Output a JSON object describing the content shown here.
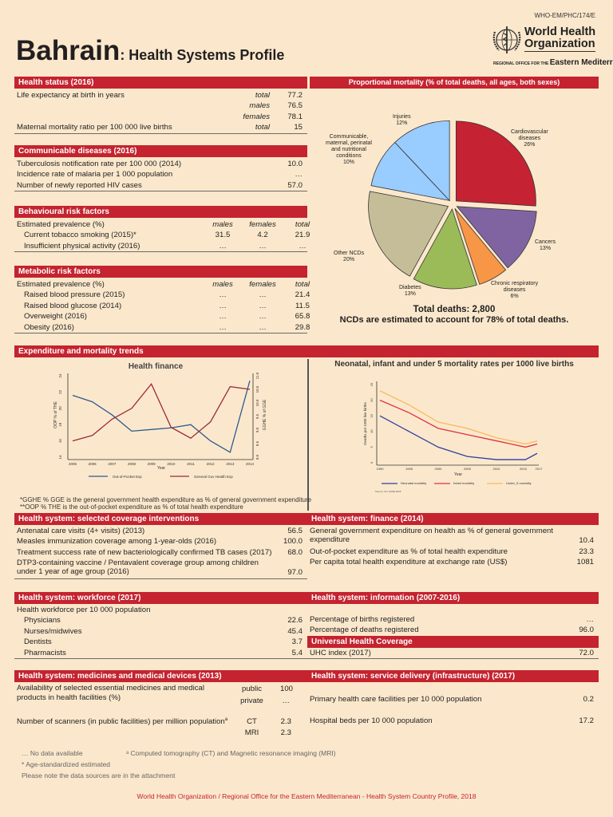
{
  "header": {
    "doc_id": "WHO-EM/PHC/174/E",
    "country": "Bahrain",
    "subtitle": ": Health Systems Profile",
    "logo": {
      "line1": "World Health",
      "line2": "Organization",
      "regional_prefix": "REGIONAL OFFICE FOR THE",
      "region": "Eastern Mediterranean"
    }
  },
  "health_status": {
    "title": "Health status (2016)",
    "rows": [
      {
        "label": "Life expectancy at birth in years",
        "sub": "total",
        "value": "77.2"
      },
      {
        "label": "",
        "sub": "males",
        "value": "76.5"
      },
      {
        "label": "",
        "sub": "females",
        "value": "78.1"
      },
      {
        "label": "Maternal mortality ratio per 100 000 live births",
        "sub": "total",
        "value": "15"
      }
    ]
  },
  "communicable": {
    "title": "Communicable diseases (2016)",
    "rows": [
      {
        "label": "Tuberculosis notification rate per 100 000 (2014)",
        "value": "10.0"
      },
      {
        "label": "Incidence rate of malaria per 1 000 population",
        "value": "…"
      },
      {
        "label": "Number of newly reported HIV cases",
        "value": "57.0"
      }
    ]
  },
  "behavioural": {
    "title": "Behavioural risk factors",
    "header": {
      "label": "Estimated prevalence (%)",
      "cols": [
        "males",
        "females",
        "total"
      ]
    },
    "rows": [
      {
        "label": "Current tobacco smoking (2015)*",
        "cols": [
          "31.5",
          "4.2",
          "21.9"
        ]
      },
      {
        "label": "Insufficient physical activity (2016)",
        "cols": [
          "…",
          "…",
          "…"
        ]
      }
    ]
  },
  "metabolic": {
    "title": "Metabolic risk factors",
    "header": {
      "label": "Estimated prevalence (%)",
      "cols": [
        "males",
        "females",
        "total"
      ]
    },
    "rows": [
      {
        "label": "Raised blood pressure (2015)",
        "cols": [
          "…",
          "…",
          "21.4"
        ]
      },
      {
        "label": "Raised blood glucose (2014)",
        "cols": [
          "…",
          "…",
          "11.5"
        ]
      },
      {
        "label": "Overweight (2016)",
        "cols": [
          "…",
          "…",
          "65.8"
        ]
      },
      {
        "label": "Obesity (2016)",
        "cols": [
          "…",
          "…",
          "29.8"
        ]
      }
    ]
  },
  "mortality_pie": {
    "title": "Proportional mortality (% of total deaths, all ages, both sexes)",
    "total_deaths": "Total deaths: 2,800",
    "ncd_note": "NCDs are estimated to account for 78% of total deaths.",
    "chart_data": {
      "type": "pie",
      "slices": [
        {
          "name": "Cardiovascular diseases",
          "label": [
            "Cardiovascular",
            "diseases",
            "26%"
          ],
          "value": 26,
          "color": "#c52233"
        },
        {
          "name": "Cancers",
          "label": [
            "Cancers",
            "13%"
          ],
          "value": 13,
          "color": "#8064a2"
        },
        {
          "name": "Chronic respiratory diseases",
          "label": [
            "Chronic respiratory",
            "diseases",
            "6%"
          ],
          "value": 6,
          "color": "#f79646"
        },
        {
          "name": "Diabetes",
          "label": [
            "Diabetes",
            "13%"
          ],
          "value": 13,
          "color": "#9bbb59"
        },
        {
          "name": "Other NCDs",
          "label": [
            "Other NCDs",
            "20%"
          ],
          "value": 20,
          "color": "#c4bd97"
        },
        {
          "name": "Communicable, maternal, perinatal and nutritional conditions",
          "label": [
            "Communicable,",
            "maternal, perinatal",
            "and nutritional",
            "conditions",
            "10%"
          ],
          "value": 10,
          "color": "#99ccff"
        },
        {
          "name": "Injuries",
          "label": [
            "Injuries",
            "12%"
          ],
          "value": 12,
          "color": "#99ccff"
        }
      ]
    }
  },
  "expenditure": {
    "title": "Expenditure and mortality trends",
    "footnote1": "*GGHE % GGE is the general government health expenditure as % of general government expenditure",
    "footnote2": "**OOP % THE is the out-of-pocket expenditure as % of total health expenditure"
  },
  "chart_data": [
    {
      "type": "line",
      "title": "Health finance",
      "xlabel": "Year",
      "ylabel": "OOP % of THE",
      "y2label": "GGHE % of GGE",
      "x": [
        2005,
        2006,
        2007,
        2008,
        2009,
        2010,
        2011,
        2012,
        2013,
        2014
      ],
      "ylim": [
        14,
        24
      ],
      "y2lim": [
        8.0,
        11.0
      ],
      "yticks": [
        "14",
        "16",
        "18",
        "20",
        "22",
        "24"
      ],
      "y2ticks": [
        "8.0",
        "8.5",
        "9.0",
        "9.5",
        "10.0",
        "10.5",
        "11.0"
      ],
      "legend": "bottom",
      "series": [
        {
          "name": "Out-of-Pocket Exp",
          "axis": "left",
          "color": "#2d5a8e",
          "values": [
            21.6,
            20.8,
            19.2,
            17.2,
            17.4,
            17.6,
            18.0,
            16.0,
            14.6,
            23.4
          ]
        },
        {
          "name": "General Gov Health Exp",
          "axis": "right",
          "color": "#9b2a36",
          "values": [
            8.6,
            8.8,
            9.4,
            9.8,
            10.7,
            9.1,
            8.7,
            9.3,
            10.6,
            10.5
          ]
        }
      ]
    },
    {
      "type": "line",
      "title": "Neonatal, infant and under 5 mortality rates per 1000 live births",
      "xlabel": "Year",
      "ylabel": "Deaths per 1000 live births",
      "x": [
        1990,
        1995,
        2000,
        2005,
        2010,
        2015,
        2017
      ],
      "ylim": [
        0,
        25
      ],
      "yticks": [
        "0",
        "5",
        "10",
        "15",
        "20",
        "25"
      ],
      "legend": "bottom",
      "source": "Source: UN, IGME 2018",
      "series": [
        {
          "name": "Neonatal mortality",
          "color": "#2e3f9e",
          "values": [
            15,
            10,
            5,
            2,
            1,
            1,
            3
          ]
        },
        {
          "name": "Infant mortality",
          "color": "#e0313f",
          "values": [
            20,
            16,
            11,
            9,
            7,
            5,
            6
          ]
        },
        {
          "name": "Under_5 mortality",
          "color": "#f9b85e",
          "values": [
            23,
            18.5,
            13,
            11,
            8,
            6,
            7
          ]
        }
      ]
    }
  ],
  "coverage": {
    "title": "Health system: selected coverage interventions",
    "rows": [
      {
        "label": "Antenatal care visits (4+ visits) (2013)",
        "value": "56.5"
      },
      {
        "label": "Measles immunization coverage among 1-year-olds (2016)",
        "value": "100.0"
      },
      {
        "label": "Treatment success rate of new bacteriologically confirmed TB cases (2017)",
        "value": "68.0"
      },
      {
        "label": "DTP3-containing vaccine / Pentavalent coverage group among children under 1 year of age group (2016)",
        "value": "97.0",
        "two": true
      }
    ]
  },
  "finance": {
    "title": "Health system: finance (2014)",
    "rows": [
      {
        "label": "General government expenditure on health as % of general government expenditure",
        "value": "10.4",
        "two": true
      },
      {
        "label": "Out-of-pocket expenditure as % of total health expenditure",
        "value": "23.3"
      },
      {
        "label": "Per capita total health expenditure at exchange rate (US$)",
        "value": "1081"
      }
    ]
  },
  "workforce": {
    "title": "Health system: workforce (2017)",
    "intro": "Health workforce per 10 000 population",
    "rows": [
      {
        "label": "Physicians",
        "value": "22.6"
      },
      {
        "label": "Nurses/midwives",
        "value": "45.4"
      },
      {
        "label": "Dentists",
        "value": "3.7"
      },
      {
        "label": "Pharmacists",
        "value": "5.4"
      }
    ]
  },
  "information": {
    "title": "Health system: information (2007-2016)",
    "rows": [
      {
        "label": "Percentage of births registered",
        "value": "…"
      },
      {
        "label": "Percentage of deaths registered",
        "value": "96.0"
      }
    ],
    "uhc_title": "Universal Health Coverage",
    "uhc_rows": [
      {
        "label": "UHC index (2017)",
        "value": "72.0"
      }
    ]
  },
  "medicines": {
    "title": "Health system: medicines and medical devices (2013)",
    "availability_label": "Availability of selected essential medicines and medical products in health facilities (%)",
    "availability": [
      {
        "sub": "public",
        "value": "100"
      },
      {
        "sub": "private",
        "value": "…"
      }
    ],
    "scanners_label": "Number of scanners (in public facilities) per million population",
    "scanners_sup": "a",
    "scanners": [
      {
        "sub": "CT",
        "value": "2.3"
      },
      {
        "sub": "MRI",
        "value": "2.3"
      }
    ]
  },
  "service_delivery": {
    "title": "Health system: service delivery (infrastructure) (2017)",
    "rows": [
      {
        "label": "Primary health care facilities per 10 000 population",
        "value": "0.2"
      },
      {
        "label": "Hospital beds per 10 000 population",
        "value": "17.2"
      }
    ]
  },
  "notes": {
    "no_data": "… No data available",
    "ct_mri": "ᵃ Computed tomography (CT) and Magnetic resonance imaging (MRI)",
    "age_std": "* Age-standardized estimated",
    "sources": "Please note the data sources are in the attachment"
  },
  "footer": "World Health Organization / Regional Office for the Eastern Mediterranean - Health System Country Profile, 2018"
}
